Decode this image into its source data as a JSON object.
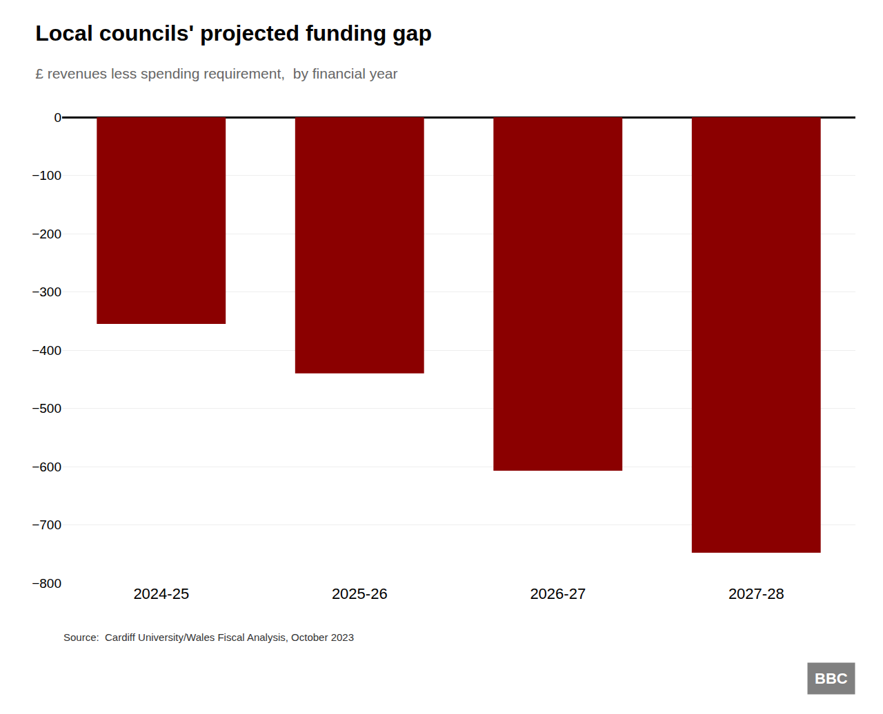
{
  "chart_data": {
    "type": "bar",
    "title": "Local councils' projected funding gap",
    "subtitle": "£ revenues less spending requirement,  by financial year",
    "source": "Source:  Cardiff University/Wales Fiscal Analysis, October 2023",
    "logo": "BBC",
    "categories": [
      "2024-25",
      "2025-26",
      "2026-27",
      "2027-28"
    ],
    "values": [
      -355,
      -440,
      -607,
      -748
    ],
    "color": "#8B0000",
    "ylim": [
      -800,
      0
    ],
    "yticks": [
      0,
      {
        "value": -100,
        "label": "−100"
      },
      {
        "value": -200,
        "label": "−200"
      },
      {
        "value": -300,
        "label": "−300"
      },
      {
        "value": -400,
        "label": "−400"
      },
      {
        "value": -500,
        "label": "−500"
      },
      {
        "value": -600,
        "label": "−600"
      },
      {
        "value": -700,
        "label": "−700"
      },
      {
        "value": -800,
        "label": "−800"
      }
    ],
    "grid": true
  }
}
